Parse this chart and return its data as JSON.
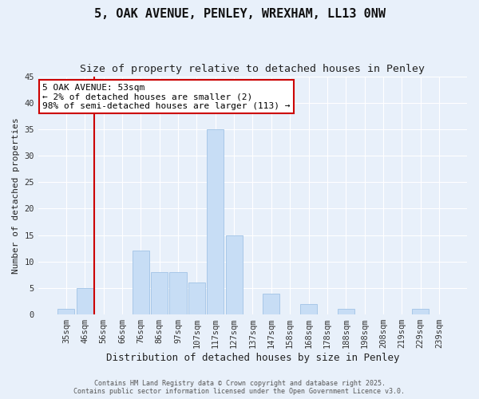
{
  "title": "5, OAK AVENUE, PENLEY, WREXHAM, LL13 0NW",
  "subtitle": "Size of property relative to detached houses in Penley",
  "xlabel": "Distribution of detached houses by size in Penley",
  "ylabel": "Number of detached properties",
  "bar_labels": [
    "35sqm",
    "46sqm",
    "56sqm",
    "66sqm",
    "76sqm",
    "86sqm",
    "97sqm",
    "107sqm",
    "117sqm",
    "127sqm",
    "137sqm",
    "147sqm",
    "158sqm",
    "168sqm",
    "178sqm",
    "188sqm",
    "198sqm",
    "208sqm",
    "219sqm",
    "229sqm",
    "239sqm"
  ],
  "bar_values": [
    1,
    5,
    0,
    0,
    12,
    8,
    8,
    6,
    35,
    15,
    0,
    4,
    0,
    2,
    0,
    1,
    0,
    0,
    0,
    1,
    0
  ],
  "bar_color": "#c7ddf5",
  "bar_edge_color": "#a8c8e8",
  "ylim": [
    0,
    45
  ],
  "yticks": [
    0,
    5,
    10,
    15,
    20,
    25,
    30,
    35,
    40,
    45
  ],
  "vline_color": "#cc0000",
  "annotation_title": "5 OAK AVENUE: 53sqm",
  "annotation_line1": "← 2% of detached houses are smaller (2)",
  "annotation_line2": "98% of semi-detached houses are larger (113) →",
  "annotation_box_edge": "#cc0000",
  "footer1": "Contains HM Land Registry data © Crown copyright and database right 2025.",
  "footer2": "Contains public sector information licensed under the Open Government Licence v3.0.",
  "bg_color": "#e8f0fa",
  "grid_color": "#ffffff",
  "title_fontsize": 11,
  "subtitle_fontsize": 9.5,
  "xlabel_fontsize": 9,
  "ylabel_fontsize": 8,
  "tick_fontsize": 7.5,
  "footer_fontsize": 6
}
